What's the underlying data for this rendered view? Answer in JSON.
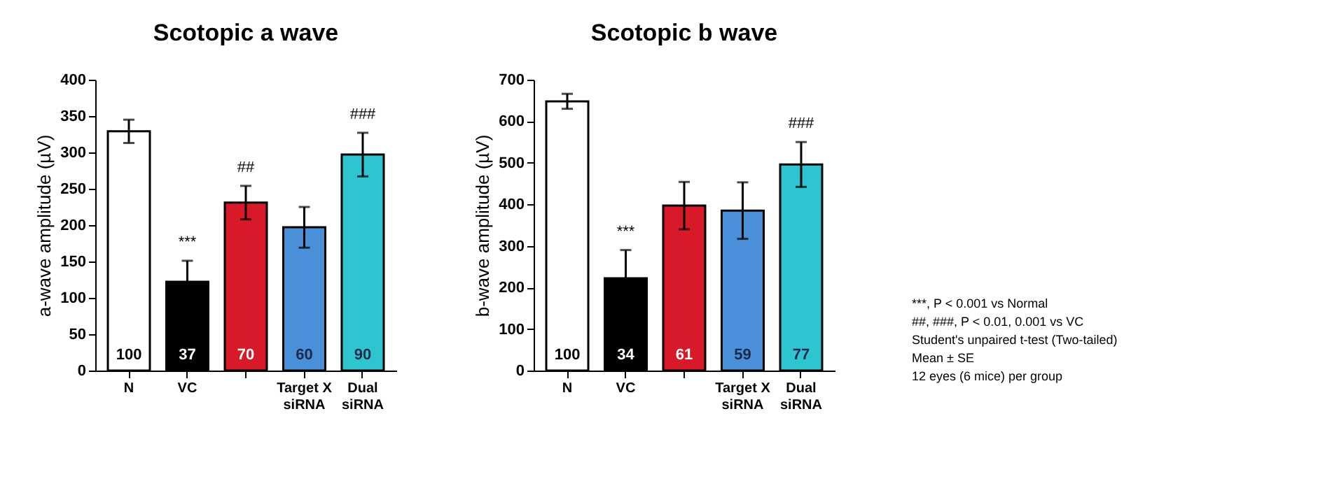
{
  "chart_data": [
    {
      "type": "bar",
      "title": "Scotopic a wave",
      "ylabel": "a-wave amplitude (µV)",
      "categories": [
        "N",
        "VC",
        null,
        "Target X siRNA",
        "Dual siRNA"
      ],
      "values": [
        329,
        122,
        231,
        197,
        297
      ],
      "errors": [
        16,
        29,
        23,
        28,
        30
      ],
      "colors": [
        "#ffffff",
        "#000000",
        "#d7192a",
        "#4a90d9",
        "#2ec4d0"
      ],
      "ylim": [
        0,
        400
      ],
      "yticks": [
        0,
        50,
        100,
        150,
        200,
        250,
        300,
        350,
        400
      ],
      "grid": false,
      "legend": false,
      "annotations": [
        {
          "text": "***",
          "x": "VC",
          "y": 151
        },
        {
          "text": "##",
          "y": 254
        },
        {
          "text": "###",
          "x": "Dual siRNA",
          "y": 327
        },
        {
          "text": "100",
          "x": "N",
          "y": 0
        },
        {
          "text": "37",
          "x": "VC",
          "y": 0
        },
        {
          "text": "70",
          "y": 0
        },
        {
          "text": "60",
          "x": "Target X siRNA",
          "y": 0
        },
        {
          "text": "90",
          "x": "Dual siRNA",
          "y": 0
        }
      ]
    },
    {
      "type": "bar",
      "title": "Scotopic b wave",
      "ylabel": "b-wave amplitude (µV)",
      "categories": [
        "N",
        "VC",
        null,
        "Target X siRNA",
        "Dual siRNA"
      ],
      "values": [
        648,
        222,
        397,
        385,
        496
      ],
      "errors": [
        18,
        68,
        57,
        68,
        54
      ],
      "colors": [
        "#ffffff",
        "#000000",
        "#d7192a",
        "#4a90d9",
        "#2ec4d0"
      ],
      "ylim": [
        0,
        700
      ],
      "yticks": [
        0,
        100,
        200,
        300,
        400,
        500,
        600,
        700
      ],
      "grid": false,
      "legend": false,
      "annotations": [
        {
          "text": "***",
          "x": "VC",
          "y": 290
        },
        {
          "text": "###",
          "x": "Dual siRNA",
          "y": 550
        },
        {
          "text": "100",
          "x": "N",
          "y": 0
        },
        {
          "text": "34",
          "x": "VC",
          "y": 0
        },
        {
          "text": "61",
          "y": 0
        },
        {
          "text": "59",
          "x": "Target X siRNA",
          "y": 0
        },
        {
          "text": "77",
          "x": "Dual siRNA",
          "y": 0
        },
        "***, P < 0.001 vs Normal",
        "##, ###, P < 0.01, 0.001 vs VC",
        "Student's unpaired t-test (Two-tailed)",
        "Mean ± SE",
        "12 eyes (6 mice) per group"
      ]
    }
  ]
}
